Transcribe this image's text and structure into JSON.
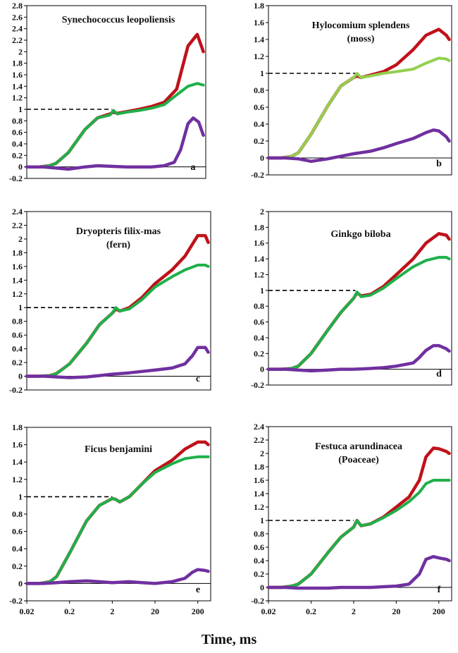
{
  "xlabel": "Time, ms",
  "colors": {
    "red": "#c0111a",
    "green": "#1fb04a",
    "light_green": "#92d050",
    "purple": "#7030a0",
    "dashed": "#000000"
  },
  "chart_data": [
    {
      "type": "line",
      "panel": "a",
      "title": [
        "Synechococcus leopoliensis"
      ],
      "xscale": "log",
      "xlim": [
        0.02,
        400
      ],
      "xticks": [],
      "ylim": [
        -0.2,
        2.8
      ],
      "yticks": [
        -0.2,
        0,
        0.2,
        0.4,
        0.6,
        0.8,
        1,
        1.2,
        1.4,
        1.6,
        1.8,
        2,
        2.2,
        2.4,
        2.6,
        2.8
      ],
      "ytick_labels": [
        "-0.2",
        "0",
        "0.2",
        "0.4",
        "0.6",
        "0.8",
        "1",
        "1.2",
        "1.4",
        "1.6",
        "1.8",
        "2",
        "2.2",
        "2.4",
        "2.6",
        "2.8"
      ],
      "reference_line": {
        "y": 1,
        "x_to": 2.2
      },
      "series": [
        {
          "color": "red",
          "x": [
            0.02,
            0.04,
            0.07,
            0.1,
            0.2,
            0.5,
            1,
            2,
            2.4,
            3,
            5,
            10,
            20,
            40,
            80,
            150,
            250,
            350
          ],
          "y": [
            0,
            0,
            0.02,
            0.06,
            0.25,
            0.65,
            0.85,
            0.92,
            0.95,
            0.93,
            0.96,
            1.0,
            1.05,
            1.12,
            1.35,
            2.1,
            2.3,
            2.0
          ]
        },
        {
          "color": "green",
          "x": [
            0.02,
            0.04,
            0.07,
            0.1,
            0.2,
            0.5,
            1,
            2,
            2.4,
            3,
            5,
            10,
            20,
            40,
            80,
            150,
            250,
            350
          ],
          "y": [
            0,
            0,
            0.02,
            0.06,
            0.25,
            0.65,
            0.85,
            0.9,
            0.98,
            0.92,
            0.95,
            0.98,
            1.02,
            1.08,
            1.25,
            1.4,
            1.45,
            1.42
          ]
        },
        {
          "color": "purple",
          "x": [
            0.02,
            0.05,
            0.1,
            0.2,
            0.5,
            1,
            2,
            5,
            10,
            20,
            40,
            70,
            100,
            150,
            200,
            270,
            350
          ],
          "y": [
            0,
            0,
            -0.02,
            -0.04,
            0.0,
            0.02,
            0.01,
            0.0,
            0.0,
            0.0,
            0.02,
            0.08,
            0.3,
            0.75,
            0.85,
            0.78,
            0.55
          ]
        }
      ],
      "annotation": "a"
    },
    {
      "type": "line",
      "panel": "b",
      "title": [
        "Hylocomium splendens",
        "(moss)"
      ],
      "xscale": "log",
      "xlim": [
        0.02,
        400
      ],
      "xticks": [],
      "ylim": [
        -0.2,
        1.8
      ],
      "yticks": [
        -0.2,
        0,
        0.2,
        0.4,
        0.6,
        0.8,
        1,
        1.2,
        1.4,
        1.6,
        1.8
      ],
      "ytick_labels": [
        "-0.2",
        "0",
        "0.2",
        "0.4",
        "0.6",
        "0.8",
        "1",
        "1.2",
        "1.4",
        "1.6",
        "1.8"
      ],
      "reference_line": {
        "y": 1,
        "x_to": 2.2
      },
      "series": [
        {
          "color": "red",
          "x": [
            0.02,
            0.04,
            0.07,
            0.1,
            0.2,
            0.5,
            1,
            2,
            2.4,
            3,
            5,
            10,
            20,
            50,
            100,
            200,
            300,
            350
          ],
          "y": [
            0,
            0,
            0.02,
            0.06,
            0.28,
            0.62,
            0.85,
            0.95,
            0.97,
            0.95,
            0.98,
            1.02,
            1.1,
            1.28,
            1.45,
            1.52,
            1.45,
            1.4
          ]
        },
        {
          "color": "light_green",
          "x": [
            0.02,
            0.04,
            0.07,
            0.1,
            0.2,
            0.5,
            1,
            2,
            2.4,
            3,
            5,
            10,
            20,
            50,
            100,
            200,
            300,
            350
          ],
          "y": [
            0,
            0,
            0.02,
            0.06,
            0.28,
            0.62,
            0.85,
            0.95,
            1.0,
            0.95,
            0.97,
            1.0,
            1.02,
            1.05,
            1.12,
            1.18,
            1.17,
            1.15
          ]
        },
        {
          "color": "purple",
          "x": [
            0.02,
            0.05,
            0.1,
            0.2,
            0.5,
            1,
            2,
            5,
            10,
            20,
            50,
            100,
            150,
            200,
            300,
            350
          ],
          "y": [
            0,
            0,
            -0.01,
            -0.04,
            -0.01,
            0.02,
            0.05,
            0.08,
            0.12,
            0.17,
            0.23,
            0.3,
            0.33,
            0.32,
            0.25,
            0.2
          ]
        }
      ],
      "annotation": "b"
    },
    {
      "type": "line",
      "panel": "c",
      "title": [
        "Dryopteris filix-mas",
        "(fern)"
      ],
      "xscale": "log",
      "xlim": [
        0.02,
        400
      ],
      "xticks": [],
      "ylim": [
        -0.2,
        2.4
      ],
      "yticks": [
        -0.2,
        0,
        0.2,
        0.4,
        0.6,
        0.8,
        1,
        1.2,
        1.4,
        1.6,
        1.8,
        2,
        2.2,
        2.4
      ],
      "ytick_labels": [
        "-0.2",
        "0",
        "0.2",
        "0.4",
        "0.6",
        "0.8",
        "1",
        "1.2",
        "1.4",
        "1.6",
        "1.8",
        "2",
        "2.2",
        "2.4"
      ],
      "reference_line": {
        "y": 1,
        "x_to": 2.2
      },
      "series": [
        {
          "color": "red",
          "x": [
            0.02,
            0.04,
            0.07,
            0.1,
            0.2,
            0.5,
            1,
            2,
            2.4,
            3,
            5,
            10,
            20,
            50,
            100,
            200,
            300,
            350
          ],
          "y": [
            0,
            0,
            0.01,
            0.04,
            0.18,
            0.48,
            0.75,
            0.92,
            0.98,
            0.95,
            1.0,
            1.15,
            1.35,
            1.55,
            1.75,
            2.05,
            2.05,
            1.95
          ]
        },
        {
          "color": "green",
          "x": [
            0.02,
            0.04,
            0.07,
            0.1,
            0.2,
            0.5,
            1,
            2,
            2.4,
            3,
            5,
            10,
            20,
            50,
            100,
            200,
            300,
            350
          ],
          "y": [
            0,
            0,
            0.01,
            0.04,
            0.18,
            0.48,
            0.75,
            0.92,
            1.0,
            0.95,
            0.98,
            1.12,
            1.3,
            1.45,
            1.55,
            1.62,
            1.62,
            1.6
          ]
        },
        {
          "color": "purple",
          "x": [
            0.02,
            0.05,
            0.1,
            0.2,
            0.5,
            1,
            2,
            5,
            10,
            20,
            50,
            100,
            150,
            200,
            300,
            350
          ],
          "y": [
            0,
            0,
            -0.01,
            -0.02,
            -0.01,
            0.01,
            0.03,
            0.05,
            0.07,
            0.09,
            0.12,
            0.18,
            0.3,
            0.42,
            0.42,
            0.35
          ]
        }
      ],
      "annotation": "c"
    },
    {
      "type": "line",
      "panel": "d",
      "title": [
        "Ginkgo biloba"
      ],
      "xscale": "log",
      "xlim": [
        0.02,
        400
      ],
      "xticks": [],
      "ylim": [
        -0.2,
        2.0
      ],
      "yticks": [
        -0.2,
        0,
        0.2,
        0.4,
        0.6,
        0.8,
        1,
        1.2,
        1.4,
        1.6,
        1.8,
        2
      ],
      "ytick_labels": [
        "-0.2",
        "0",
        "0.2",
        "0.4",
        "0.6",
        "0.8",
        "1",
        "1.2",
        "1.4",
        "1.6",
        "1.8",
        "2"
      ],
      "reference_line": {
        "y": 1,
        "x_to": 2.2
      },
      "series": [
        {
          "color": "red",
          "x": [
            0.02,
            0.04,
            0.07,
            0.1,
            0.2,
            0.5,
            1,
            2,
            2.4,
            3,
            5,
            10,
            20,
            50,
            100,
            200,
            300,
            350
          ],
          "y": [
            0,
            0,
            0.01,
            0.04,
            0.2,
            0.5,
            0.72,
            0.9,
            0.97,
            0.93,
            0.95,
            1.05,
            1.2,
            1.4,
            1.6,
            1.72,
            1.7,
            1.65
          ]
        },
        {
          "color": "green",
          "x": [
            0.02,
            0.04,
            0.07,
            0.1,
            0.2,
            0.5,
            1,
            2,
            2.4,
            3,
            5,
            10,
            20,
            50,
            100,
            200,
            300,
            350
          ],
          "y": [
            0,
            0,
            0.01,
            0.04,
            0.2,
            0.5,
            0.72,
            0.9,
            0.98,
            0.92,
            0.94,
            1.03,
            1.15,
            1.3,
            1.38,
            1.42,
            1.42,
            1.4
          ]
        },
        {
          "color": "purple",
          "x": [
            0.02,
            0.05,
            0.1,
            0.2,
            0.5,
            1,
            2,
            5,
            10,
            20,
            50,
            70,
            100,
            150,
            200,
            300,
            350
          ],
          "y": [
            0,
            0,
            -0.01,
            -0.02,
            -0.01,
            0.0,
            0.0,
            0.01,
            0.02,
            0.04,
            0.08,
            0.15,
            0.24,
            0.3,
            0.3,
            0.26,
            0.23
          ]
        }
      ],
      "annotation": "d"
    },
    {
      "type": "line",
      "panel": "e",
      "title": [
        "Ficus benjamini"
      ],
      "xscale": "log",
      "xlim": [
        0.02,
        400
      ],
      "xticks": [
        0.02,
        0.2,
        2,
        20,
        200
      ],
      "xtick_labels": [
        "0.02",
        "0.2",
        "2",
        "20",
        "200"
      ],
      "ylim": [
        -0.2,
        1.8
      ],
      "yticks": [
        -0.2,
        0,
        0.2,
        0.4,
        0.6,
        0.8,
        1,
        1.2,
        1.4,
        1.6,
        1.8
      ],
      "ytick_labels": [
        "-0.2",
        "0",
        "0.2",
        "0.4",
        "0.6",
        "0.8",
        "1",
        "1.2",
        "1.4",
        "1.6",
        "1.8"
      ],
      "reference_line": {
        "y": 1,
        "x_to": 2.0
      },
      "series": [
        {
          "color": "red",
          "x": [
            0.02,
            0.04,
            0.07,
            0.1,
            0.2,
            0.5,
            1,
            2,
            2.4,
            3,
            5,
            10,
            20,
            50,
            100,
            200,
            300,
            350
          ],
          "y": [
            0,
            0,
            0.02,
            0.08,
            0.35,
            0.72,
            0.9,
            0.98,
            0.97,
            0.94,
            1.0,
            1.15,
            1.3,
            1.42,
            1.55,
            1.63,
            1.63,
            1.6
          ]
        },
        {
          "color": "green",
          "x": [
            0.02,
            0.04,
            0.07,
            0.1,
            0.2,
            0.5,
            1,
            2,
            2.4,
            3,
            5,
            10,
            20,
            50,
            100,
            200,
            300,
            350
          ],
          "y": [
            0,
            0,
            0.02,
            0.08,
            0.35,
            0.72,
            0.9,
            0.98,
            0.97,
            0.94,
            1.0,
            1.15,
            1.28,
            1.38,
            1.44,
            1.46,
            1.46,
            1.46
          ]
        },
        {
          "color": "purple",
          "x": [
            0.02,
            0.05,
            0.1,
            0.2,
            0.5,
            1,
            2,
            5,
            10,
            20,
            50,
            100,
            150,
            200,
            300,
            350
          ],
          "y": [
            0,
            0,
            0.01,
            0.02,
            0.03,
            0.02,
            0.01,
            0.02,
            0.01,
            0.0,
            0.02,
            0.06,
            0.13,
            0.16,
            0.15,
            0.14
          ]
        }
      ],
      "annotation": "e"
    },
    {
      "type": "line",
      "panel": "f",
      "title": [
        "Festuca arundinacea",
        "(Poaceae)"
      ],
      "xscale": "log",
      "xlim": [
        0.02,
        400
      ],
      "xticks": [
        0.02,
        0.2,
        2,
        20,
        200
      ],
      "xtick_labels": [
        "0.02",
        "0.2",
        "2",
        "20",
        "200"
      ],
      "ylim": [
        -0.2,
        2.4
      ],
      "yticks": [
        -0.2,
        0,
        0.2,
        0.4,
        0.6,
        0.8,
        1,
        1.2,
        1.4,
        1.6,
        1.8,
        2,
        2.2,
        2.4
      ],
      "ytick_labels": [
        "-0.2",
        "0",
        "0.2",
        "0.4",
        "0.6",
        "0.8",
        "1",
        "1.2",
        "1.4",
        "1.6",
        "1.8",
        "2",
        "2.2",
        "2.4"
      ],
      "reference_line": {
        "y": 1,
        "x_to": 2.0
      },
      "series": [
        {
          "color": "red",
          "x": [
            0.02,
            0.04,
            0.07,
            0.1,
            0.2,
            0.5,
            1,
            2,
            2.4,
            3,
            5,
            10,
            20,
            40,
            70,
            100,
            150,
            200,
            300,
            350
          ],
          "y": [
            0,
            0,
            0.02,
            0.05,
            0.2,
            0.52,
            0.75,
            0.9,
            1.0,
            0.92,
            0.95,
            1.05,
            1.2,
            1.35,
            1.6,
            1.95,
            2.08,
            2.07,
            2.03,
            2.0
          ]
        },
        {
          "color": "green",
          "x": [
            0.02,
            0.04,
            0.07,
            0.1,
            0.2,
            0.5,
            1,
            2,
            2.4,
            3,
            5,
            10,
            20,
            40,
            70,
            100,
            150,
            200,
            300,
            350
          ],
          "y": [
            0,
            0,
            0.02,
            0.05,
            0.2,
            0.52,
            0.75,
            0.9,
            1.0,
            0.92,
            0.95,
            1.04,
            1.15,
            1.28,
            1.42,
            1.55,
            1.6,
            1.6,
            1.6,
            1.6
          ]
        },
        {
          "color": "purple",
          "x": [
            0.02,
            0.05,
            0.1,
            0.2,
            0.5,
            1,
            2,
            5,
            10,
            20,
            40,
            70,
            100,
            150,
            200,
            300,
            350
          ],
          "y": [
            0,
            0,
            -0.01,
            -0.01,
            -0.01,
            0.0,
            0.0,
            0.0,
            0.01,
            0.02,
            0.05,
            0.2,
            0.42,
            0.46,
            0.44,
            0.42,
            0.4
          ]
        }
      ],
      "annotation": "f"
    }
  ]
}
